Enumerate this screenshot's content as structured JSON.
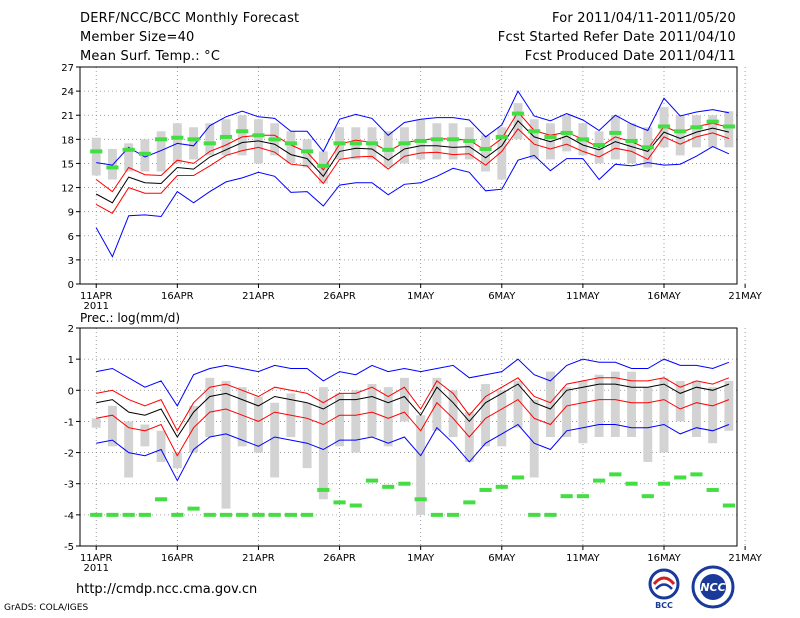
{
  "header": {
    "title": "DERF/NCC/BCC Monthly Forecast",
    "member_size": "Member Size=40",
    "variable": "Mean Surf. Temp.: °C",
    "period": "For 2011/04/11-2011/05/20",
    "started": "Fcst Started Refer Date 2011/04/10",
    "produced": "Fcst Produced Date 2011/04/11"
  },
  "footer": {
    "url": "http://cmdp.ncc.cma.gov.cn",
    "credit": "GrADS: COLA/IGES"
  },
  "logos": {
    "left_text": "BCC",
    "right_text": "NCC"
  },
  "colors": {
    "mean": "#000000",
    "spread": "#ff0000",
    "extreme": "#0000ff",
    "median": "#44dd44",
    "box": "#d3d3d3"
  },
  "chart_data": [
    {
      "type": "line",
      "title": "Mean Surf. Temp.: °C",
      "x_tick_labels": [
        "11APR",
        "16APR",
        "21APR",
        "26APR",
        "1MAY",
        "6MAY",
        "11MAY",
        "16MAY",
        "21MAY"
      ],
      "year_label": "2011",
      "ylim": [
        0,
        27
      ],
      "yticks": [
        0,
        3,
        6,
        9,
        12,
        15,
        18,
        21,
        24,
        27
      ],
      "grid": true,
      "series": [
        {
          "name": "max",
          "values": [
            7.0,
            3.4,
            8.5,
            8.6,
            8.4,
            11.5,
            10.1,
            11.5,
            12.7,
            13.2,
            13.9,
            13.4,
            11.4,
            11.5,
            9.7,
            12.3,
            12.6,
            12.6,
            11.1,
            12.4,
            12.6,
            13.4,
            14.4,
            13.9,
            11.6,
            11.8,
            15.4,
            16.0,
            14.1,
            15.6,
            15.6,
            13.0,
            14.9,
            14.7,
            15.1,
            14.8,
            14.9,
            15.9,
            17.1,
            16.2
          ]
        },
        {
          "name": "mean_plus",
          "values": [
            13.0,
            11.5,
            14.5,
            13.6,
            13.5,
            15.4,
            15.0,
            16.5,
            17.3,
            18.3,
            18.5,
            18.5,
            17.3,
            16.4,
            14.2,
            17.4,
            17.9,
            17.6,
            16.5,
            17.6,
            17.9,
            18.1,
            18.0,
            17.9,
            16.6,
            18.1,
            21.4,
            19.1,
            18.5,
            18.9,
            18.0,
            17.0,
            18.3,
            17.7,
            16.8,
            19.6,
            18.8,
            19.6,
            20.0,
            19.5
          ]
        },
        {
          "name": "mean",
          "values": [
            11.2,
            10.1,
            13.3,
            12.6,
            12.5,
            14.5,
            14.3,
            15.8,
            16.7,
            17.6,
            17.8,
            17.4,
            16.1,
            15.6,
            13.4,
            16.5,
            16.9,
            16.8,
            15.4,
            16.8,
            17.2,
            17.2,
            17.0,
            17.1,
            15.7,
            17.2,
            20.3,
            18.3,
            17.7,
            18.4,
            17.3,
            16.7,
            17.7,
            17.1,
            16.5,
            18.9,
            18.1,
            18.9,
            19.4,
            18.9
          ]
        },
        {
          "name": "mean_minus",
          "values": [
            9.9,
            8.8,
            12.0,
            11.3,
            11.3,
            13.5,
            13.5,
            14.7,
            16.0,
            16.6,
            17.0,
            16.4,
            14.9,
            14.7,
            12.5,
            15.5,
            15.8,
            15.9,
            14.3,
            15.9,
            16.3,
            16.4,
            16.1,
            16.2,
            14.8,
            16.5,
            19.3,
            17.4,
            16.8,
            17.4,
            16.5,
            15.8,
            16.9,
            16.5,
            15.5,
            18.3,
            17.4,
            18.3,
            18.8,
            18.1
          ]
        },
        {
          "name": "min",
          "values": [
            15.1,
            14.8,
            17.0,
            15.8,
            16.6,
            17.5,
            17.2,
            19.7,
            20.8,
            21.5,
            20.8,
            20.6,
            19.0,
            19.0,
            16.5,
            20.5,
            21.1,
            20.6,
            18.5,
            20.1,
            20.5,
            20.7,
            20.7,
            20.4,
            18.3,
            19.8,
            24.0,
            20.9,
            20.3,
            21.2,
            20.4,
            19.1,
            21.0,
            19.9,
            19.1,
            23.1,
            20.9,
            21.4,
            21.7,
            21.3
          ]
        },
        {
          "name": "median",
          "values": [
            16.5,
            14.5,
            16.7,
            16.2,
            18.0,
            18.2,
            18.0,
            17.5,
            18.3,
            19.0,
            18.5,
            18.0,
            17.5,
            16.5,
            14.7,
            17.5,
            17.5,
            17.5,
            16.7,
            17.5,
            17.8,
            18.0,
            18.0,
            17.8,
            16.8,
            18.3,
            21.2,
            19.0,
            18.3,
            18.8,
            18.0,
            17.3,
            18.8,
            17.8,
            17.0,
            19.6,
            19.0,
            19.5,
            20.2,
            19.6
          ]
        },
        {
          "name": "box_low",
          "values": [
            13.5,
            13.0,
            14.0,
            14.0,
            14.0,
            15.0,
            15.5,
            16.0,
            16.0,
            16.0,
            15.0,
            16.0,
            15.0,
            14.5,
            12.5,
            15.5,
            15.5,
            15.5,
            14.5,
            15.0,
            15.5,
            15.5,
            15.5,
            15.5,
            14.0,
            13.0,
            18.0,
            15.5,
            15.5,
            16.5,
            16.0,
            15.0,
            15.5,
            15.0,
            14.5,
            17.0,
            16.0,
            17.0,
            17.0,
            17.0
          ]
        },
        {
          "name": "box_high",
          "values": [
            18.2,
            16.8,
            17.5,
            18.0,
            19.0,
            20.0,
            19.5,
            20.0,
            20.5,
            21.0,
            20.5,
            20.0,
            19.0,
            18.0,
            16.5,
            19.5,
            19.5,
            19.5,
            19.0,
            19.5,
            20.5,
            20.0,
            20.0,
            19.5,
            18.5,
            19.5,
            22.5,
            20.5,
            20.0,
            21.0,
            20.0,
            19.0,
            21.0,
            20.0,
            19.5,
            22.0,
            21.0,
            21.0,
            21.0,
            21.5
          ]
        }
      ]
    },
    {
      "type": "line",
      "title": "Prec.: log(mm/d)",
      "x_tick_labels": [
        "11APR",
        "16APR",
        "21APR",
        "26APR",
        "1MAY",
        "6MAY",
        "11MAY",
        "16MAY",
        "21MAY"
      ],
      "year_label": "2011",
      "ylim": [
        -5,
        2
      ],
      "yticks": [
        -5,
        -4,
        -3,
        -2,
        -1,
        0,
        1,
        2
      ],
      "grid": true,
      "series": [
        {
          "name": "max",
          "values": [
            0.6,
            0.7,
            0.4,
            0.1,
            0.3,
            -0.5,
            0.5,
            0.7,
            0.8,
            0.7,
            0.6,
            0.8,
            0.7,
            0.7,
            0.3,
            0.6,
            0.5,
            0.8,
            0.6,
            0.7,
            0.6,
            0.7,
            0.8,
            0.4,
            0.5,
            0.6,
            1.0,
            0.5,
            0.3,
            0.8,
            1.0,
            0.9,
            0.9,
            0.7,
            0.7,
            1.0,
            0.8,
            0.8,
            0.7,
            0.9
          ]
        },
        {
          "name": "mean_plus",
          "values": [
            -0.1,
            0.0,
            -0.3,
            -0.5,
            -0.3,
            -1.3,
            -0.4,
            0.1,
            0.2,
            0.0,
            -0.2,
            0.1,
            0.0,
            -0.1,
            -0.4,
            -0.1,
            -0.1,
            0.1,
            -0.2,
            0.1,
            -0.6,
            0.3,
            -0.1,
            -0.8,
            -0.2,
            0.1,
            0.4,
            -0.2,
            -0.4,
            0.2,
            0.3,
            0.4,
            0.4,
            0.3,
            0.3,
            0.4,
            0.1,
            0.3,
            0.2,
            0.4
          ]
        },
        {
          "name": "mean",
          "values": [
            -0.4,
            -0.3,
            -0.7,
            -0.8,
            -0.6,
            -1.5,
            -0.7,
            -0.2,
            -0.1,
            -0.3,
            -0.5,
            -0.2,
            -0.3,
            -0.4,
            -0.6,
            -0.3,
            -0.3,
            -0.2,
            -0.4,
            -0.2,
            -0.8,
            0.1,
            -0.4,
            -1.0,
            -0.4,
            -0.1,
            0.2,
            -0.4,
            -0.6,
            0.0,
            0.1,
            0.2,
            0.2,
            0.1,
            0.1,
            0.2,
            -0.1,
            0.1,
            0.0,
            0.2
          ]
        },
        {
          "name": "mean_minus",
          "values": [
            -0.9,
            -0.8,
            -1.2,
            -1.3,
            -1.1,
            -2.1,
            -1.2,
            -0.7,
            -0.6,
            -0.8,
            -1.0,
            -0.7,
            -0.8,
            -0.9,
            -1.1,
            -0.8,
            -0.8,
            -0.7,
            -0.9,
            -0.7,
            -1.3,
            -0.4,
            -0.9,
            -1.5,
            -0.9,
            -0.6,
            -0.3,
            -0.9,
            -1.1,
            -0.5,
            -0.4,
            -0.3,
            -0.3,
            -0.4,
            -0.4,
            -0.3,
            -0.6,
            -0.4,
            -0.5,
            -0.3
          ]
        },
        {
          "name": "min",
          "values": [
            -1.7,
            -1.6,
            -2.0,
            -2.1,
            -1.9,
            -2.9,
            -1.9,
            -1.5,
            -1.4,
            -1.6,
            -1.8,
            -1.5,
            -1.6,
            -1.7,
            -1.9,
            -1.6,
            -1.6,
            -1.5,
            -1.7,
            -1.5,
            -2.1,
            -1.2,
            -1.7,
            -2.3,
            -1.7,
            -1.4,
            -1.1,
            -1.7,
            -1.9,
            -1.3,
            -1.2,
            -1.1,
            -1.1,
            -1.2,
            -1.2,
            -1.1,
            -1.4,
            -1.2,
            -1.3,
            -1.1
          ]
        },
        {
          "name": "median",
          "values": [
            -4.0,
            -4.0,
            -4.0,
            -4.0,
            -3.5,
            -4.0,
            -3.8,
            -4.0,
            -4.0,
            -4.0,
            -4.0,
            -4.0,
            -4.0,
            -4.0,
            -3.2,
            -3.6,
            -3.7,
            -2.9,
            -3.1,
            -3.0,
            -3.5,
            -4.0,
            -4.0,
            -3.6,
            -3.2,
            -3.1,
            -2.8,
            -4.0,
            -4.0,
            -3.4,
            -3.4,
            -2.9,
            -2.7,
            -3.0,
            -3.4,
            -3.0,
            -2.8,
            -2.7,
            -3.2,
            -3.7
          ]
        },
        {
          "name": "box_low",
          "values": [
            -0.9,
            -0.5,
            -1.0,
            -1.1,
            -1.3,
            -2.0,
            -0.5,
            0.4,
            0.3,
            0.1,
            -0.2,
            -0.4,
            -0.1,
            -0.4,
            0.1,
            -0.1,
            0.0,
            0.2,
            0.1,
            0.4,
            -0.8,
            0.4,
            0.0,
            -0.7,
            0.2,
            0.0,
            0.3,
            -0.3,
            0.6,
            0.1,
            0.3,
            0.5,
            0.6,
            0.6,
            0.1,
            0.4,
            0.3,
            0.3,
            0.1,
            0.3
          ]
        },
        {
          "name": "box_high",
          "values": [
            -1.2,
            -1.8,
            -2.8,
            -1.8,
            -2.3,
            -2.5,
            -2.0,
            -1.5,
            -3.8,
            -1.8,
            -2.0,
            -2.8,
            -1.5,
            -2.5,
            -3.5,
            -1.8,
            -2.0,
            -1.5,
            -1.8,
            -1.0,
            -4.0,
            -1.3,
            -1.5,
            -2.3,
            -1.8,
            -1.8,
            -1.2,
            -2.8,
            -1.5,
            -1.5,
            -1.7,
            -1.5,
            -1.5,
            -1.5,
            -2.3,
            -2.0,
            -1.0,
            -1.5,
            -1.7,
            -1.3
          ]
        }
      ]
    }
  ]
}
